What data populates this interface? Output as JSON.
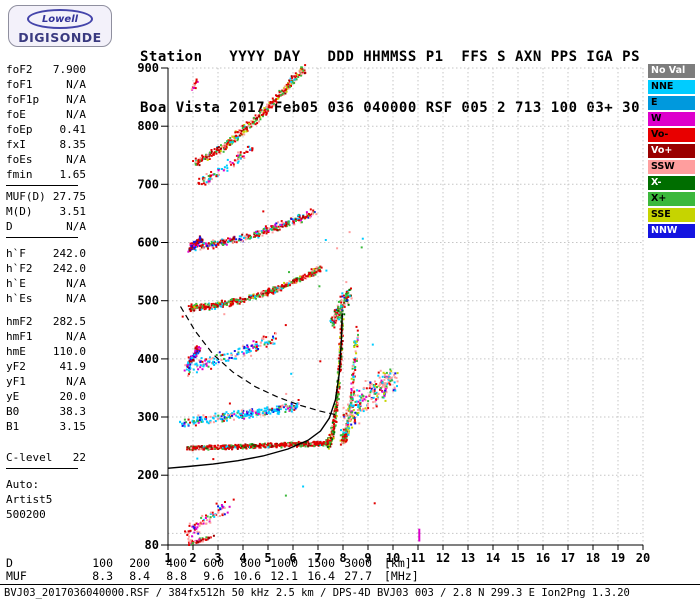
{
  "logo": {
    "top": "Lowell",
    "bottom": "DIGISONDE"
  },
  "header": {
    "line1": "Station   YYYY DAY   DDD HHMMSS P1  FFS S AXN PPS IGA PS",
    "line2": "Boa Vista 2017 Feb05 036 040000 RSF 005 2 713 100 03+ 30"
  },
  "left_panel": {
    "groups": [
      {
        "rows": [
          {
            "label": "foF2",
            "value": "7.900"
          },
          {
            "label": "foF1",
            "value": "N/A"
          },
          {
            "label": "foF1p",
            "value": "N/A"
          },
          {
            "label": "foE",
            "value": "N/A"
          },
          {
            "label": "foEp",
            "value": "0.41"
          },
          {
            "label": "fxI",
            "value": "8.35"
          },
          {
            "label": "foEs",
            "value": "N/A"
          },
          {
            "label": "fmin",
            "value": "1.65"
          }
        ],
        "divider": true
      },
      {
        "rows": [
          {
            "label": "MUF(D)",
            "value": "27.75"
          },
          {
            "label": "M(D)",
            "value": "3.51"
          },
          {
            "label": "D",
            "value": "N/A"
          }
        ],
        "divider": true
      },
      {
        "gap": 8,
        "rows": [
          {
            "label": "h`F",
            "value": "242.0"
          },
          {
            "label": "h`F2",
            "value": "242.0"
          },
          {
            "label": "h`E",
            "value": "N/A"
          },
          {
            "label": "h`Es",
            "value": "N/A"
          }
        ]
      },
      {
        "gap": 8,
        "rows": [
          {
            "label": "hmF2",
            "value": "282.5"
          },
          {
            "label": "hmF1",
            "value": "N/A"
          },
          {
            "label": "hmE",
            "value": "110.0"
          },
          {
            "label": "yF2",
            "value": "41.9"
          },
          {
            "label": "yF1",
            "value": "N/A"
          },
          {
            "label": "yE",
            "value": "20.0"
          },
          {
            "label": "B0",
            "value": "38.3"
          },
          {
            "label": "B1",
            "value": "3.15"
          }
        ]
      },
      {
        "gap": 16,
        "rows": [
          {
            "label": "C-level",
            "value": "22"
          }
        ],
        "divider": true
      },
      {
        "gap": 8,
        "rows": [
          {
            "label": "Auto:",
            "value": ""
          },
          {
            "label": "Artist5",
            "value": ""
          },
          {
            "label": "500200",
            "value": ""
          }
        ]
      }
    ]
  },
  "legend": {
    "items": [
      {
        "label": "No Val",
        "color": "#7d7d7d",
        "text": "#ffffff"
      },
      {
        "label": "NNE",
        "color": "#00ccff",
        "text": "#000000"
      },
      {
        "label": "E",
        "color": "#0099dd",
        "text": "#000000"
      },
      {
        "label": "W",
        "color": "#dd00cc",
        "text": "#000000"
      },
      {
        "label": "Vo-",
        "color": "#e80000",
        "text": "#000000"
      },
      {
        "label": "Vo+",
        "color": "#9a0000",
        "text": "#ffffff"
      },
      {
        "label": "SSW",
        "color": "#ff9e9e",
        "text": "#000000"
      },
      {
        "label": "X-",
        "color": "#006e00",
        "text": "#ffffff"
      },
      {
        "label": "X+",
        "color": "#3cb83c",
        "text": "#000000"
      },
      {
        "label": "SSE",
        "color": "#c6d400",
        "text": "#000000"
      },
      {
        "label": "NNW",
        "color": "#1414e0",
        "text": "#ffffff"
      }
    ]
  },
  "chart_data": {
    "type": "scatter",
    "x_ticks": [
      1,
      2,
      3,
      4,
      5,
      6,
      7,
      8,
      9,
      10,
      11,
      12,
      13,
      14,
      15,
      16,
      17,
      18,
      19,
      20
    ],
    "y_ticks": [
      900,
      800,
      700,
      600,
      500,
      400,
      300,
      200,
      80
    ],
    "xlim": [
      1,
      20
    ],
    "ylim": [
      80,
      900
    ],
    "x_unit": "[MHz]",
    "y_unit": "[km]",
    "grid": true,
    "traces": [
      {
        "name": "F1hop-flat",
        "f0": 1.78,
        "f1": 7.35,
        "h0": 247,
        "h1": 255,
        "p": 1.4,
        "n": 520,
        "jf": 0.06,
        "jh": 4.5,
        "colors": {
          "#e00000": 0.5,
          "#9a0000": 0.13,
          "#3cb83c": 0.17,
          "#006e00": 0.06,
          "#ff9e9e": 0.08,
          "#00ccff": 0.06
        }
      },
      {
        "name": "F1hop-cusp",
        "f0": 7.35,
        "f1": 7.98,
        "h0": 255,
        "h1": 478,
        "p": 2.6,
        "n": 300,
        "jf": 0.06,
        "jh": 10,
        "colors": {
          "#e00000": 0.36,
          "#3cb83c": 0.26,
          "#006e00": 0.1,
          "#9a0000": 0.08,
          "#c6d400": 0.1,
          "#ff9e9e": 0.1
        }
      },
      {
        "name": "F1hop-xmode",
        "f0": 7.95,
        "f1": 8.55,
        "h0": 262,
        "h1": 450,
        "p": 2.4,
        "n": 190,
        "jf": 0.08,
        "jh": 12,
        "colors": {
          "#e00000": 0.28,
          "#ff9e9e": 0.24,
          "#3cb83c": 0.2,
          "#00ccff": 0.1,
          "#c6d400": 0.1,
          "#dd00cc": 0.08
        }
      },
      {
        "name": "spreadF-blob",
        "f0": 8.15,
        "f1": 10.0,
        "h0": 298,
        "h1": 372,
        "p": 1,
        "n": 240,
        "jf": 0.3,
        "jh": 26,
        "colors": {
          "#ff9e9e": 0.34,
          "#00ccff": 0.14,
          "#3cb83c": 0.15,
          "#e00000": 0.12,
          "#c6d400": 0.1,
          "#1414e0": 0.08,
          "#dd00cc": 0.07
        }
      },
      {
        "name": "cusp-top",
        "f0": 7.6,
        "f1": 8.3,
        "h0": 462,
        "h1": 518,
        "p": 1,
        "n": 120,
        "jf": 0.12,
        "jh": 14,
        "colors": {
          "#3cb83c": 0.28,
          "#e00000": 0.24,
          "#006e00": 0.14,
          "#00ccff": 0.12,
          "#ff9e9e": 0.12,
          "#1414e0": 0.1
        }
      },
      {
        "name": "F2hop",
        "f0": 1.85,
        "f1": 7.15,
        "h0": 488,
        "h1": 556,
        "p": 1.8,
        "n": 430,
        "jf": 0.06,
        "jh": 6.5,
        "colors": {
          "#e00000": 0.46,
          "#9a0000": 0.12,
          "#3cb83c": 0.2,
          "#ff9e9e": 0.1,
          "#c6d400": 0.06,
          "#00ccff": 0.06
        }
      },
      {
        "name": "F2hop-upper",
        "f0": 1.9,
        "f1": 6.9,
        "h0": 592,
        "h1": 652,
        "p": 1.5,
        "n": 300,
        "jf": 0.07,
        "jh": 8,
        "colors": {
          "#e00000": 0.33,
          "#3cb83c": 0.2,
          "#00ccff": 0.12,
          "#ff9e9e": 0.12,
          "#1414e0": 0.08,
          "#9a0000": 0.08,
          "#dd00cc": 0.07
        }
      },
      {
        "name": "F2hop-upper-left",
        "f0": 1.82,
        "f1": 2.35,
        "h0": 588,
        "h1": 606,
        "p": 1,
        "n": 70,
        "jf": 0.06,
        "jh": 7,
        "colors": {
          "#1414e0": 0.38,
          "#dd00cc": 0.24,
          "#9a0000": 0.2,
          "#e00000": 0.18
        }
      },
      {
        "name": "F3hop",
        "f0": 2.05,
        "f1": 6.45,
        "h0": 738,
        "h1": 900,
        "p": 1.35,
        "n": 380,
        "jf": 0.07,
        "jh": 9,
        "colors": {
          "#e00000": 0.4,
          "#3cb83c": 0.2,
          "#ff9e9e": 0.14,
          "#9a0000": 0.1,
          "#00ccff": 0.08,
          "#c6d400": 0.08
        }
      },
      {
        "name": "F3hop-sparse",
        "f0": 2.15,
        "f1": 4.3,
        "h0": 700,
        "h1": 762,
        "p": 1.2,
        "n": 90,
        "jf": 0.1,
        "jh": 10,
        "colors": {
          "#ff9e9e": 0.3,
          "#e00000": 0.25,
          "#00ccff": 0.18,
          "#dd00cc": 0.12,
          "#3cb83c": 0.15
        }
      },
      {
        "name": "oblique-band-300",
        "f0": 1.5,
        "f1": 6.3,
        "h0": 290,
        "h1": 318,
        "p": 1,
        "n": 260,
        "jf": 0.1,
        "jh": 9,
        "colors": {
          "#00ccff": 0.52,
          "#1414e0": 0.12,
          "#ff9e9e": 0.12,
          "#e00000": 0.08,
          "#dd00cc": 0.06,
          "#3cb83c": 0.1
        }
      },
      {
        "name": "oblique-band-400",
        "f0": 1.6,
        "f1": 5.3,
        "h0": 378,
        "h1": 432,
        "p": 1,
        "n": 150,
        "jf": 0.12,
        "jh": 14,
        "colors": {
          "#00ccff": 0.4,
          "#ff9e9e": 0.2,
          "#1414e0": 0.12,
          "#dd00cc": 0.1,
          "#e00000": 0.1,
          "#3cb83c": 0.08
        }
      },
      {
        "name": "left-400-dense",
        "f0": 1.78,
        "f1": 2.25,
        "h0": 388,
        "h1": 418,
        "p": 1,
        "n": 80,
        "jf": 0.06,
        "jh": 9,
        "colors": {
          "#1414e0": 0.3,
          "#dd00cc": 0.22,
          "#9a0000": 0.18,
          "#e00000": 0.15,
          "#00ccff": 0.15
        }
      },
      {
        "name": "es-sparse",
        "f0": 1.7,
        "f1": 3.4,
        "h0": 98,
        "h1": 148,
        "p": 1,
        "n": 80,
        "jf": 0.15,
        "jh": 14,
        "colors": {
          "#ff9e9e": 0.3,
          "#e00000": 0.22,
          "#dd00cc": 0.15,
          "#00ccff": 0.12,
          "#3cb83c": 0.1,
          "#1414e0": 0.11
        }
      },
      {
        "name": "bottom-edge",
        "f0": 1.85,
        "f1": 2.75,
        "h0": 83,
        "h1": 93,
        "p": 1,
        "n": 55,
        "jf": 0.1,
        "jh": 4,
        "colors": {
          "#e00000": 0.4,
          "#ff9e9e": 0.25,
          "#dd00cc": 0.15,
          "#9a0000": 0.1,
          "#3cb83c": 0.1
        }
      },
      {
        "name": "top-left-dots",
        "f0": 1.95,
        "f1": 2.2,
        "h0": 858,
        "h1": 880,
        "p": 1,
        "n": 14,
        "jf": 0.05,
        "jh": 6,
        "colors": {
          "#e00000": 0.5,
          "#ff9e9e": 0.3,
          "#dd00cc": 0.2
        }
      },
      {
        "name": "stray",
        "f0": 1.5,
        "f1": 9.5,
        "h0": 150,
        "h1": 730,
        "uniform": true,
        "n": 28,
        "jf": 0.1,
        "jh": 0,
        "colors": {
          "#ff9e9e": 0.3,
          "#00ccff": 0.28,
          "#3cb83c": 0.2,
          "#e00000": 0.22
        }
      }
    ],
    "profile_solid": [
      [
        1.02,
        212
      ],
      [
        1.8,
        215
      ],
      [
        2.8,
        219
      ],
      [
        3.8,
        225
      ],
      [
        4.8,
        233
      ],
      [
        5.8,
        245
      ],
      [
        6.6,
        260
      ],
      [
        7.1,
        276
      ],
      [
        7.45,
        298
      ],
      [
        7.7,
        330
      ],
      [
        7.85,
        375
      ],
      [
        7.93,
        430
      ],
      [
        7.97,
        478
      ]
    ],
    "profile_dashed": [
      [
        1.5,
        490
      ],
      [
        2.1,
        447
      ],
      [
        2.8,
        408
      ],
      [
        3.6,
        377
      ],
      [
        4.5,
        352
      ],
      [
        5.4,
        334
      ],
      [
        6.3,
        320
      ],
      [
        7.1,
        310
      ],
      [
        7.7,
        304
      ]
    ],
    "marks": [
      {
        "f": 11.05,
        "h0": 86,
        "h1": 108,
        "color": "#dd00cc",
        "w": 2
      }
    ]
  },
  "footer": {
    "rows": [
      {
        "label": "D",
        "values": [
          "100",
          "200",
          "400",
          "600",
          "800",
          "1000",
          "1500",
          "3000"
        ],
        "unit": "[km]"
      },
      {
        "label": "MUF",
        "values": [
          "8.3",
          "8.4",
          "8.8",
          "9.6",
          "10.6",
          "12.1",
          "16.4",
          "27.7"
        ],
        "unit": "[MHz]"
      }
    ]
  },
  "statusbar": {
    "text": "BVJ03_2017036040000.RSF / 384fx512h 50 kHz 2.5 km / DPS-4D BVJ03 003 / 2.8 N 299.3 E Ion2Png 1.3.20"
  }
}
